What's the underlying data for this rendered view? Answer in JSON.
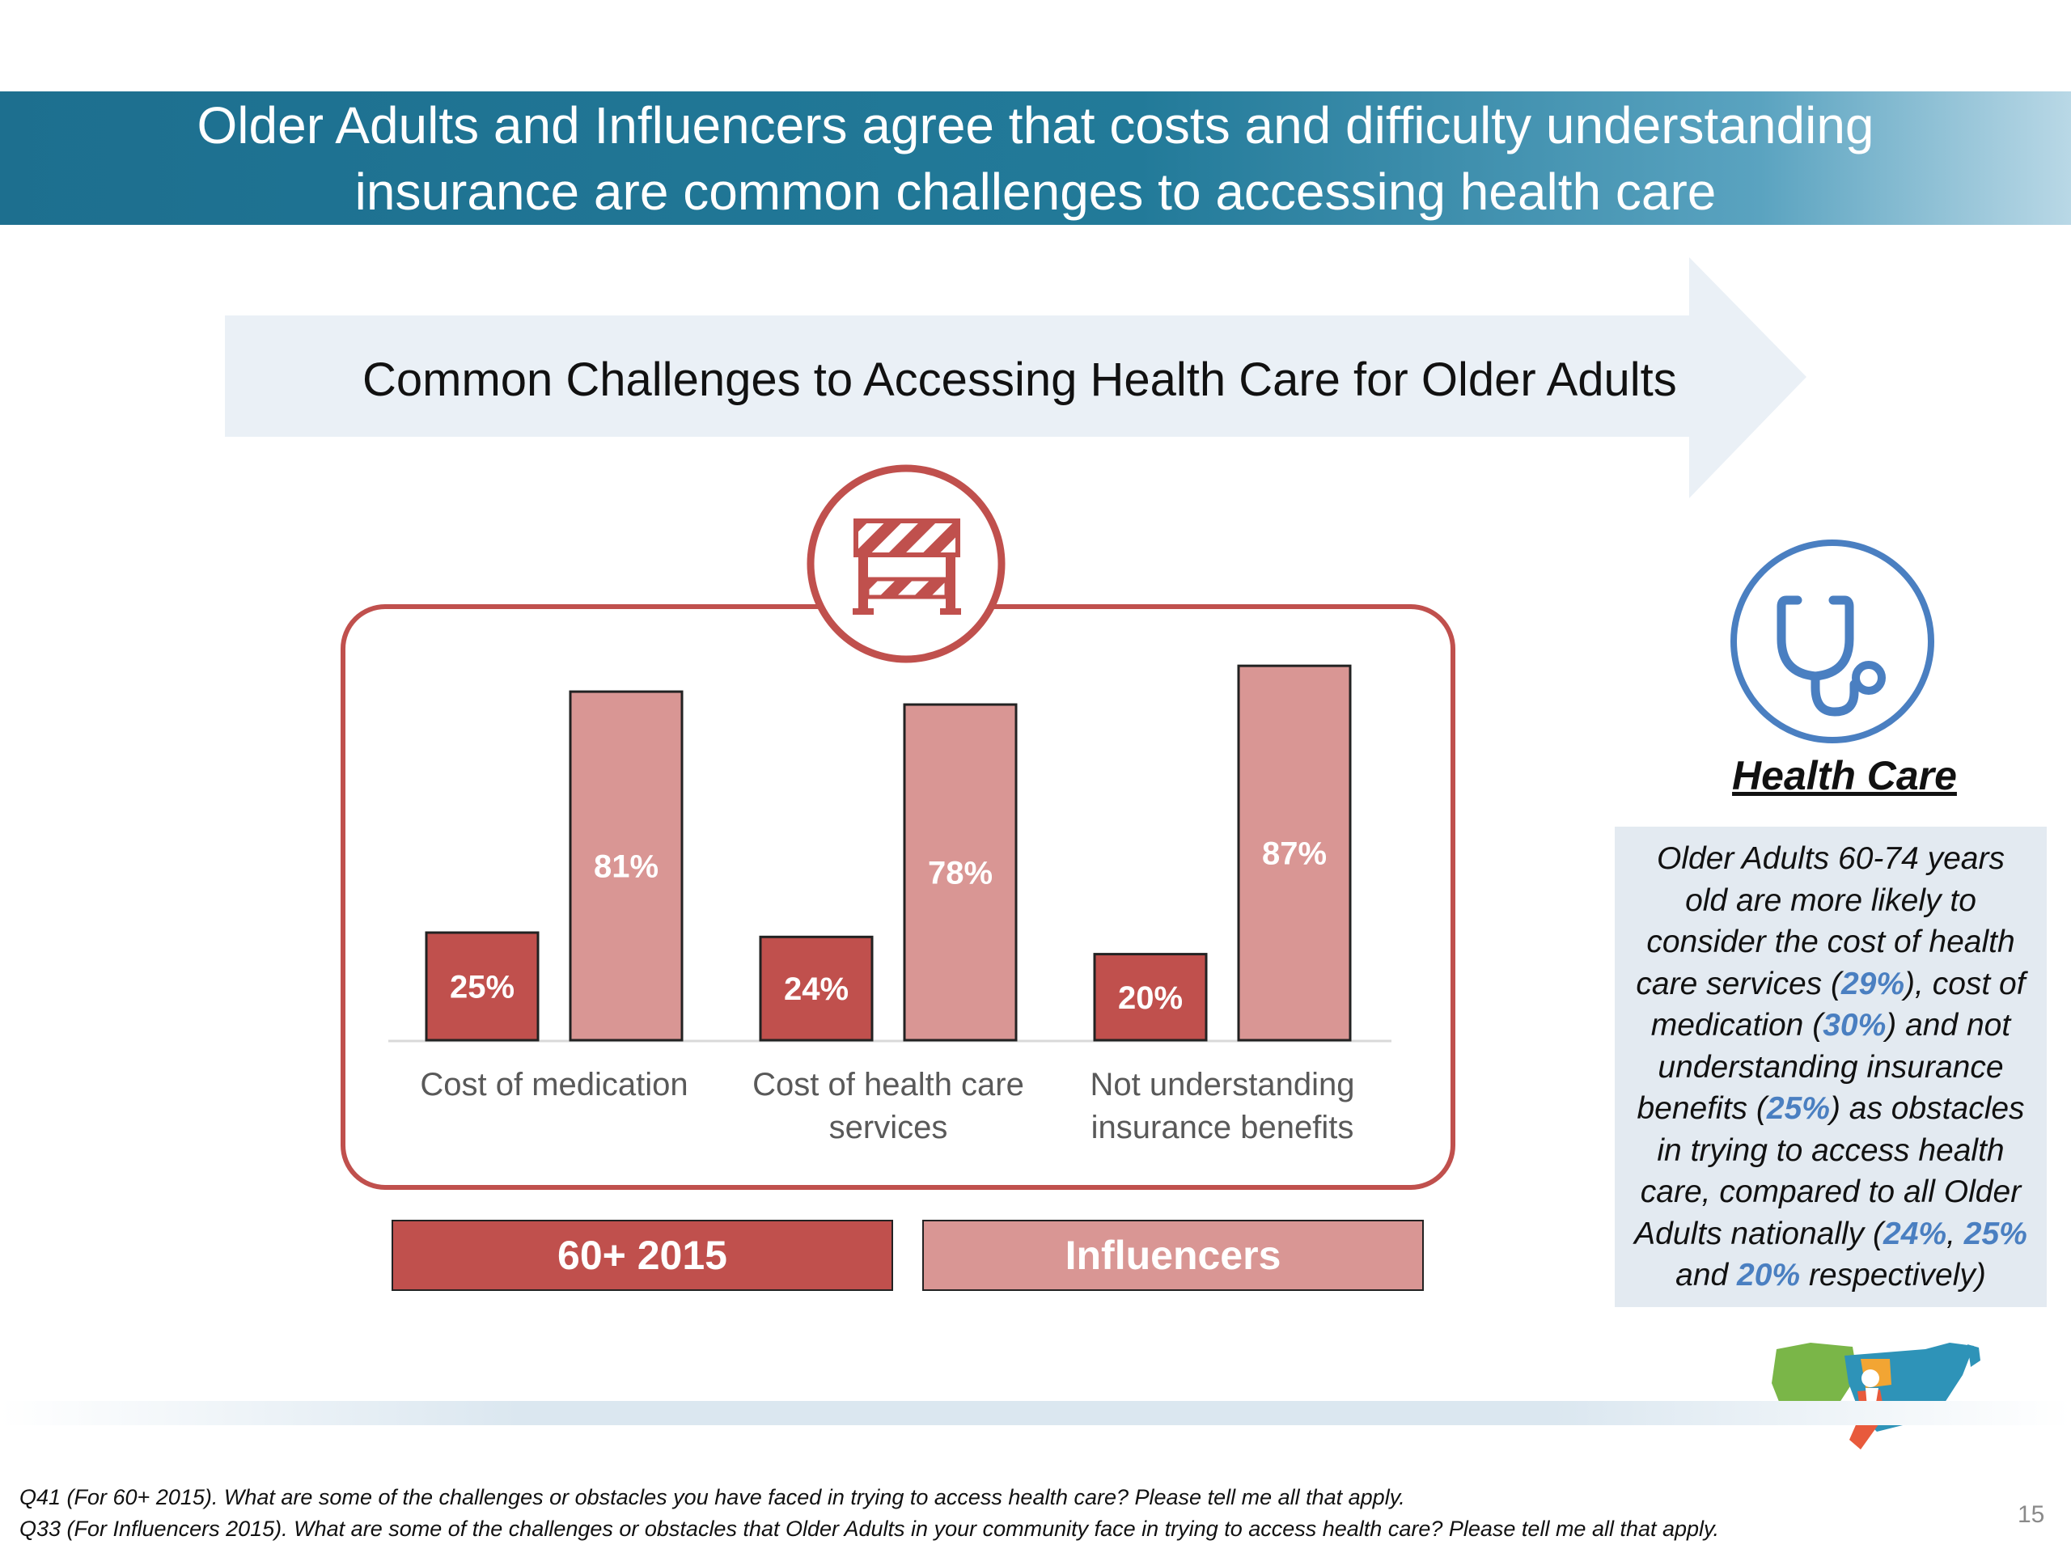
{
  "header": {
    "title_line1": "Older Adults and Influencers agree that costs and difficulty understanding",
    "title_line2": "insurance are common challenges to accessing health care"
  },
  "chart_data": {
    "type": "bar",
    "title": "Common Challenges to Accessing Health Care for Older Adults",
    "categories": [
      "Cost of medication",
      "Cost of health care services",
      "Not understanding insurance benefits"
    ],
    "category_lines": [
      [
        "Cost of medication"
      ],
      [
        "Cost of health care",
        "services"
      ],
      [
        "Not understanding",
        "insurance benefits"
      ]
    ],
    "series": [
      {
        "name": "60+ 2015",
        "values": [
          25,
          24,
          20
        ],
        "labels": [
          "25%",
          "24%",
          "20%"
        ],
        "color": "#c0504d"
      },
      {
        "name": "Influencers",
        "values": [
          81,
          78,
          87
        ],
        "labels": [
          "81%",
          "78%",
          "87%"
        ],
        "color": "#d99694"
      }
    ],
    "ylim": [
      0,
      100
    ],
    "grid": false,
    "legend_position": "bottom"
  },
  "sidebar": {
    "title": "Health Care",
    "lines": [
      [
        {
          "t": "Older Adults 60-74 years"
        }
      ],
      [
        {
          "t": "old are more likely to"
        }
      ],
      [
        {
          "t": "consider the cost of health"
        }
      ],
      [
        {
          "t": "care services ("
        },
        {
          "t": "29%",
          "hl": true
        },
        {
          "t": "), cost of"
        }
      ],
      [
        {
          "t": "medication ("
        },
        {
          "t": "30%",
          "hl": true
        },
        {
          "t": ") and not"
        }
      ],
      [
        {
          "t": "understanding insurance"
        }
      ],
      [
        {
          "t": "benefits ("
        },
        {
          "t": "25%",
          "hl": true
        },
        {
          "t": ") as obstacles"
        }
      ],
      [
        {
          "t": "in trying to access health"
        }
      ],
      [
        {
          "t": "care, compared to all Older"
        }
      ],
      [
        {
          "t": "Adults nationally ("
        },
        {
          "t": "24%",
          "hl": true
        },
        {
          "t": ", "
        },
        {
          "t": "25%",
          "hl": true
        }
      ],
      [
        {
          "t": "and "
        },
        {
          "t": "20%",
          "hl": true
        },
        {
          "t": " respectively)"
        }
      ]
    ]
  },
  "footnotes": {
    "q41": "Q41 (For 60+ 2015). What are some of the challenges or obstacles you have faced in trying to access health care? Please tell me all that apply.",
    "q33": "Q33 (For Influencers 2015). What are some of the challenges or obstacles that Older Adults in your community face in trying to access health care? Please tell me all that apply."
  },
  "page_number": "15",
  "icons": {
    "barrier": "barrier-icon",
    "stethoscope": "stethoscope-icon",
    "logo": "usa-map-logo"
  },
  "colors": {
    "banner": "#1d6f8f",
    "frame": "#c0504d",
    "stethoscope": "#4a7fc1",
    "sidebar_bg": "#e3eaf1"
  }
}
